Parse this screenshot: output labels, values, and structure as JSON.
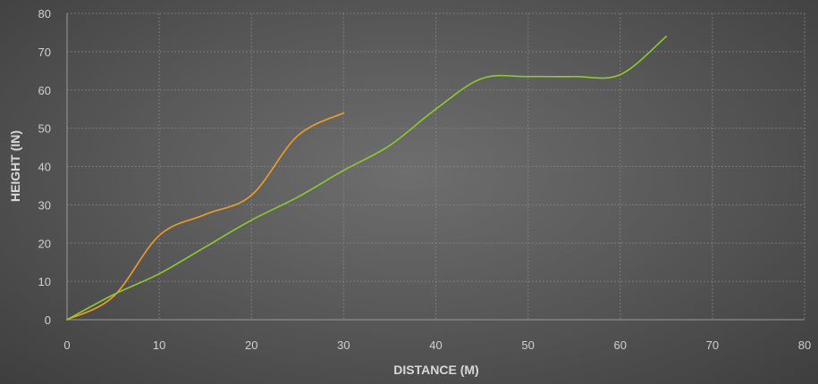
{
  "chart_data": {
    "type": "scatter",
    "title": "",
    "xlabel": "DISTANCE (M)",
    "ylabel": "HEIGHT (IN)",
    "xlim": [
      0,
      80
    ],
    "ylim": [
      0,
      80
    ],
    "xticks": [
      "0",
      "10",
      "20",
      "30",
      "40",
      "50",
      "60",
      "70",
      "80"
    ],
    "yticks": [
      "0",
      "10",
      "20",
      "30",
      "40",
      "50",
      "60",
      "70",
      "80"
    ],
    "grid": true,
    "smooth": true,
    "series": [
      {
        "color": "#f0a020",
        "x": [
          0,
          5,
          10,
          15,
          20,
          25,
          30
        ],
        "y": [
          0,
          6,
          22,
          27.5,
          32.5,
          48,
          54
        ]
      },
      {
        "color": "#8ccc2c",
        "x": [
          0,
          5,
          10,
          15,
          20,
          25,
          30,
          35,
          40,
          45,
          50,
          55,
          60,
          65
        ],
        "y": [
          0,
          6.5,
          12,
          19,
          26,
          32,
          39,
          45.5,
          55,
          63,
          63.5,
          63.5,
          64,
          74
        ]
      }
    ]
  }
}
